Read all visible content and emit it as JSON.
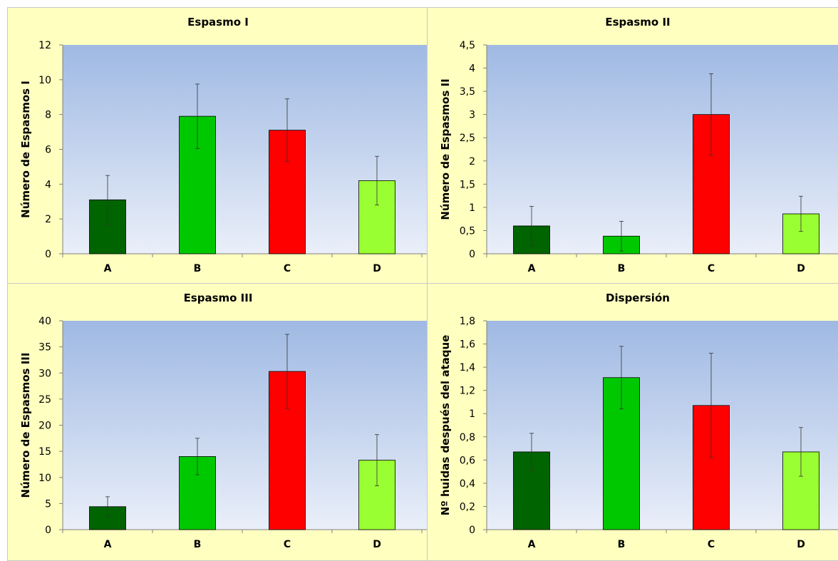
{
  "chart_data": [
    {
      "type": "bar",
      "title": "Espasmo I",
      "ylabel": "Número de Espasmos I",
      "xlabel": "",
      "categories": [
        "A",
        "B",
        "C",
        "D"
      ],
      "values": [
        3.1,
        7.9,
        7.1,
        4.2
      ],
      "error": [
        1.4,
        1.85,
        1.8,
        1.4
      ],
      "ylim": [
        0,
        12
      ],
      "yticks": [
        "0",
        "2",
        "4",
        "6",
        "8",
        "10",
        "12"
      ],
      "bar_colors": [
        "#006400",
        "#00c800",
        "#ff0000",
        "#99ff33"
      ],
      "grid": false
    },
    {
      "type": "bar",
      "title": "Espasmo II",
      "ylabel": "Número de Espasmos II",
      "xlabel": "",
      "categories": [
        "A",
        "B",
        "C",
        "D"
      ],
      "values": [
        0.6,
        0.38,
        3.0,
        0.86
      ],
      "error": [
        0.42,
        0.32,
        0.88,
        0.38
      ],
      "ylim": [
        0,
        4.5
      ],
      "yticks": [
        "0",
        "0,5",
        "1",
        "1,5",
        "2",
        "2,5",
        "3",
        "3,5",
        "4",
        "4,5"
      ],
      "bar_colors": [
        "#006400",
        "#00c800",
        "#ff0000",
        "#99ff33"
      ],
      "grid": false
    },
    {
      "type": "bar",
      "title": "Espasmo III",
      "ylabel": "Número de Espasmos III",
      "xlabel": "",
      "categories": [
        "A",
        "B",
        "C",
        "D"
      ],
      "values": [
        4.4,
        14.0,
        30.3,
        13.3
      ],
      "error": [
        1.9,
        3.5,
        7.1,
        4.9
      ],
      "ylim": [
        0,
        40
      ],
      "yticks": [
        "0",
        "5",
        "10",
        "15",
        "20",
        "25",
        "30",
        "35",
        "40"
      ],
      "bar_colors": [
        "#006400",
        "#00c800",
        "#ff0000",
        "#99ff33"
      ],
      "grid": false
    },
    {
      "type": "bar",
      "title": "Dispersión",
      "ylabel": "Nº huidas después del ataque",
      "xlabel": "",
      "categories": [
        "A",
        "B",
        "C",
        "D"
      ],
      "values": [
        0.67,
        1.31,
        1.07,
        0.67
      ],
      "error": [
        0.16,
        0.27,
        0.45,
        0.21
      ],
      "ylim": [
        0,
        1.8
      ],
      "yticks": [
        "0",
        "0,2",
        "0,4",
        "0,6",
        "0,8",
        "1",
        "1,2",
        "1,4",
        "1,6",
        "1,8"
      ],
      "bar_colors": [
        "#006400",
        "#00c800",
        "#ff0000",
        "#99ff33"
      ],
      "grid": false
    }
  ]
}
